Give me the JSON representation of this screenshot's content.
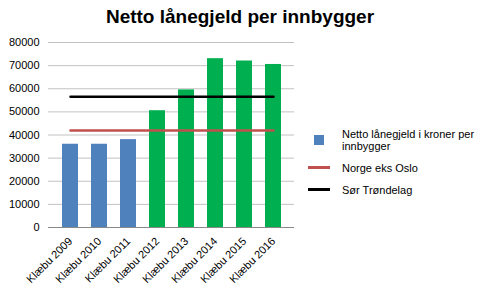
{
  "chart_data": {
    "type": "bar",
    "title": "Netto lånegjeld per innbygger",
    "categories": [
      "Klæbu 2009",
      "Klæbu 2010",
      "Klæbu 2011",
      "Klæbu 2012",
      "Klæbu 2013",
      "Klæbu 2014",
      "Klæbu 2015",
      "Klæbu 2016"
    ],
    "series": [
      {
        "name": "Netto lånegjeld i kroner per innbygger",
        "type": "bar",
        "color": "#4f81bd",
        "colors": [
          "#4f81bd",
          "#4f81bd",
          "#4f81bd",
          "#00b050",
          "#00b050",
          "#00b050",
          "#00b050",
          "#00b050"
        ],
        "values": [
          36000,
          36000,
          38000,
          50500,
          59500,
          73000,
          72000,
          70500
        ]
      },
      {
        "name": "Norge eks Oslo",
        "type": "line",
        "color": "#c0504d",
        "values": [
          42000,
          42000,
          42000,
          42000,
          42000,
          42000,
          42000,
          42000
        ]
      },
      {
        "name": "Sør Trøndelag",
        "type": "line",
        "color": "#000000",
        "values": [
          56500,
          56500,
          56500,
          56500,
          56500,
          56500,
          56500,
          56500
        ]
      }
    ],
    "ylim": [
      0,
      80000
    ],
    "yticks": [
      0,
      10000,
      20000,
      30000,
      40000,
      50000,
      60000,
      70000,
      80000
    ],
    "grid": true,
    "legend": "right"
  }
}
